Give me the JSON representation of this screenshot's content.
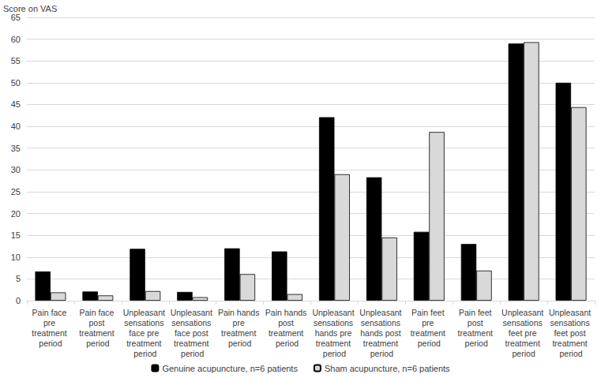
{
  "chart_data": {
    "type": "bar",
    "y_label": "Score on VAS",
    "categories": [
      "Pain face pre treatment period",
      "Pain face post treatment period",
      "Unpleasant sensations face pre treatment period",
      "Unpleasant sensations face post treatment period",
      "Pain hands pre treatment period",
      "Pain hands post treatment period",
      "Unpleasant sensations hands pre treatment period",
      "Unpleasant sensations hands post treatment period",
      "Pain feet pre treatment period",
      "Pain feet post treatment period",
      "Unpleasant sensations feet pre treatment period",
      "Unpleasant sensations feet post treatment period"
    ],
    "series": [
      {
        "name": "Genuine acupuncture, n=6 patients",
        "color": "#000000",
        "values": [
          6.7,
          2.1,
          11.9,
          2.0,
          12.0,
          11.3,
          42.1,
          28.3,
          15.8,
          13.0,
          59.0,
          50.0
        ]
      },
      {
        "name": "Sham acupuncture, n=6 patients",
        "color": "#d9d9d9",
        "values": [
          1.9,
          1.2,
          2.2,
          0.8,
          6.1,
          1.5,
          29.0,
          14.5,
          38.7,
          6.9,
          59.3,
          44.4
        ]
      }
    ],
    "ylim": [
      0,
      65
    ],
    "yticks": [
      0,
      5,
      10,
      15,
      20,
      25,
      30,
      35,
      40,
      45,
      50,
      55,
      60,
      65
    ],
    "grid": true,
    "legend": "bottom"
  }
}
